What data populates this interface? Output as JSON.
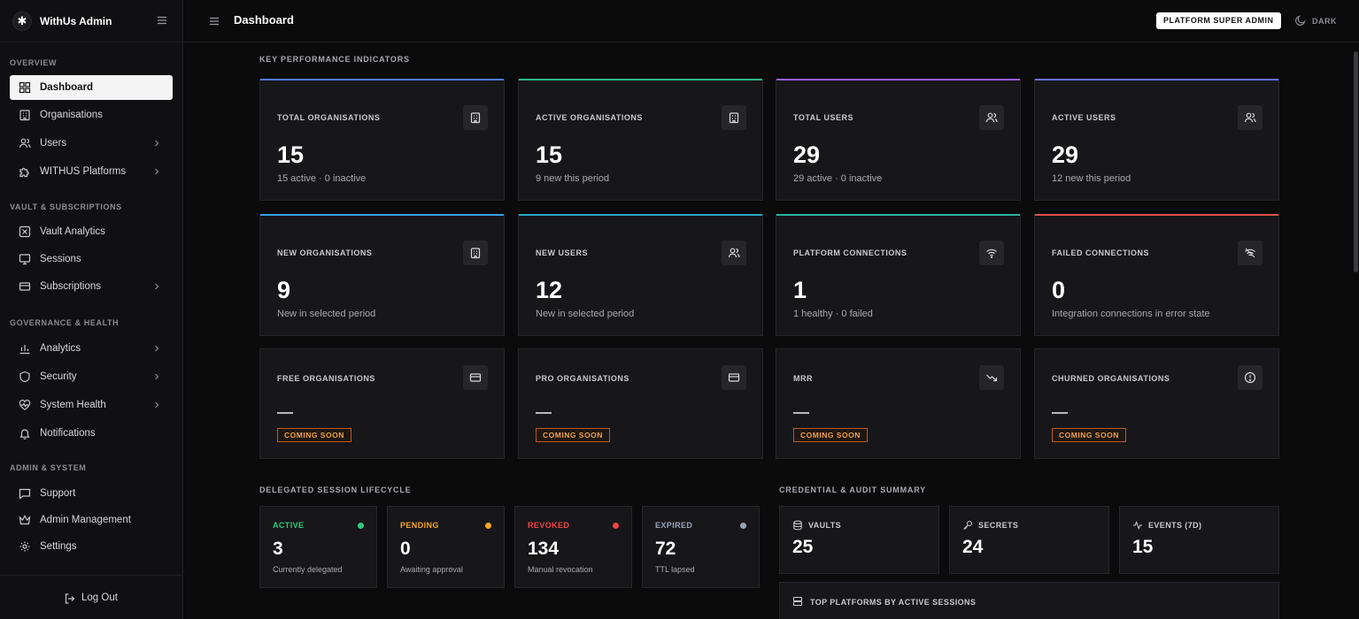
{
  "brand": {
    "name": "WithUs Admin",
    "logo_glyph": "✱"
  },
  "header": {
    "title": "Dashboard",
    "role_badge": "PLATFORM SUPER ADMIN",
    "theme_label": "DARK"
  },
  "sidebar": {
    "sections": [
      {
        "title": "OVERVIEW"
      },
      {
        "title": "VAULT & SUBSCRIPTIONS"
      },
      {
        "title": "GOVERNANCE & HEALTH"
      },
      {
        "title": "ADMIN & SYSTEM"
      }
    ],
    "items": [
      {
        "label": "Dashboard",
        "icon": "grid-icon",
        "active": true
      },
      {
        "label": "Organisations",
        "icon": "building-icon"
      },
      {
        "label": "Users",
        "icon": "users-icon",
        "expandable": true
      },
      {
        "label": "WITHUS Platforms",
        "icon": "puzzle-icon",
        "expandable": true
      },
      {
        "label": "Vault Analytics",
        "icon": "square-x-icon"
      },
      {
        "label": "Sessions",
        "icon": "monitor-icon"
      },
      {
        "label": "Subscriptions",
        "icon": "card-icon",
        "expandable": true
      },
      {
        "label": "Analytics",
        "icon": "bar-chart-icon",
        "expandable": true
      },
      {
        "label": "Security",
        "icon": "shield-icon",
        "expandable": true
      },
      {
        "label": "System Health",
        "icon": "heart-pulse-icon",
        "expandable": true
      },
      {
        "label": "Notifications",
        "icon": "bell-icon"
      },
      {
        "label": "Support",
        "icon": "chat-icon"
      },
      {
        "label": "Admin Management",
        "icon": "crown-icon"
      },
      {
        "label": "Settings",
        "icon": "gear-icon"
      }
    ],
    "logout_label": "Log Out"
  },
  "kpi": {
    "title": "KEY PERFORMANCE INDICATORS",
    "cards": [
      {
        "label": "TOTAL ORGANISATIONS",
        "value": "15",
        "sub": "15 active · 0 inactive",
        "accent": "#4f7cf0",
        "icon": "building-icon"
      },
      {
        "label": "ACTIVE ORGANISATIONS",
        "value": "15",
        "sub": "9 new this period",
        "accent": "#2fb88a",
        "icon": "building-icon"
      },
      {
        "label": "TOTAL USERS",
        "value": "29",
        "sub": "29 active · 0 inactive",
        "accent": "#9b5ce8",
        "icon": "users-icon"
      },
      {
        "label": "ACTIVE USERS",
        "value": "29",
        "sub": "12 new this period",
        "accent": "#6a6ff0",
        "icon": "users-icon"
      },
      {
        "label": "NEW ORGANISATIONS",
        "value": "9",
        "sub": "New in selected period",
        "accent": "#3aa0e8",
        "icon": "building-icon"
      },
      {
        "label": "NEW USERS",
        "value": "12",
        "sub": "New in selected period",
        "accent": "#2aa8c4",
        "icon": "users-icon"
      },
      {
        "label": "PLATFORM CONNECTIONS",
        "value": "1",
        "sub": "1 healthy · 0 failed",
        "accent": "#28b4a0",
        "icon": "wifi-icon"
      },
      {
        "label": "FAILED CONNECTIONS",
        "value": "0",
        "sub": "Integration connections in error state",
        "accent": "#e0504a",
        "icon": "wifi-off-icon"
      },
      {
        "label": "FREE ORGANISATIONS",
        "value": "—",
        "badge": "COMING SOON",
        "icon": "card-icon"
      },
      {
        "label": "PRO ORGANISATIONS",
        "value": "—",
        "badge": "COMING SOON",
        "icon": "card-icon"
      },
      {
        "label": "MRR",
        "value": "—",
        "badge": "COMING SOON",
        "icon": "trend-down-icon"
      },
      {
        "label": "CHURNED ORGANISATIONS",
        "value": "—",
        "badge": "COMING SOON",
        "icon": "alert-circle-icon"
      }
    ]
  },
  "sessions": {
    "title": "DELEGATED SESSION LIFECYCLE",
    "cards": [
      {
        "label": "ACTIVE",
        "value": "3",
        "sub": "Currently delegated",
        "color": "#2fca7e"
      },
      {
        "label": "PENDING",
        "value": "0",
        "sub": "Awaiting approval",
        "color": "#f5a524"
      },
      {
        "label": "REVOKED",
        "value": "134",
        "sub": "Manual revocation",
        "color": "#ef4444"
      },
      {
        "label": "EXPIRED",
        "value": "72",
        "sub": "TTL lapsed",
        "color": "#9aa3b5"
      }
    ]
  },
  "credentials": {
    "title": "CREDENTIAL & AUDIT SUMMARY",
    "cards": [
      {
        "label": "VAULTS",
        "value": "25",
        "icon": "database-icon"
      },
      {
        "label": "SECRETS",
        "value": "24",
        "icon": "key-icon"
      },
      {
        "label": "EVENTS (7D)",
        "value": "15",
        "icon": "activity-icon"
      }
    ],
    "top_platforms_title": "TOP PLATFORMS BY ACTIVE SESSIONS"
  }
}
